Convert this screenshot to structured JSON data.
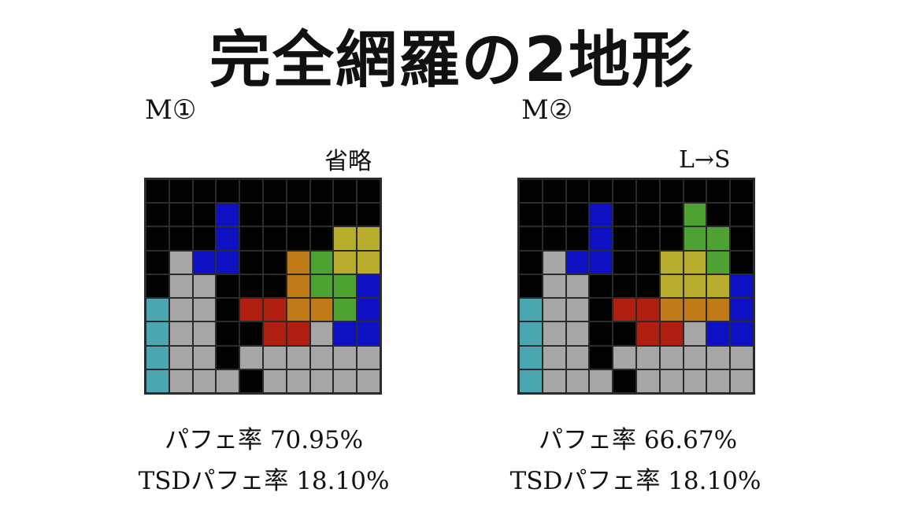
{
  "title": "完全網羅の2地形",
  "colors": {
    "X": "#000000",
    "G": "#a6a6a6",
    "I": "#4aa6b0",
    "B": "#0e10c4",
    "R": "#b01e10",
    "O": "#c07a18",
    "Gr": "#4ea232",
    "Y": "#b8ac2c"
  },
  "panels": [
    {
      "label": "M①",
      "note": "省略",
      "grid": [
        [
          "X",
          "X",
          "X",
          "X",
          "X",
          "X",
          "X",
          "X",
          "X",
          "X"
        ],
        [
          "X",
          "X",
          "X",
          "B",
          "X",
          "X",
          "X",
          "X",
          "X",
          "X"
        ],
        [
          "X",
          "X",
          "X",
          "B",
          "X",
          "X",
          "X",
          "X",
          "Y",
          "Y"
        ],
        [
          "X",
          "G",
          "B",
          "B",
          "X",
          "X",
          "O",
          "Gr",
          "Y",
          "Y"
        ],
        [
          "X",
          "G",
          "G",
          "X",
          "X",
          "X",
          "O",
          "Gr",
          "Gr",
          "B"
        ],
        [
          "I",
          "G",
          "G",
          "X",
          "R",
          "R",
          "O",
          "O",
          "Gr",
          "B"
        ],
        [
          "I",
          "G",
          "G",
          "X",
          "X",
          "R",
          "R",
          "G",
          "B",
          "B"
        ],
        [
          "I",
          "G",
          "G",
          "X",
          "G",
          "G",
          "G",
          "G",
          "G",
          "G"
        ],
        [
          "I",
          "G",
          "G",
          "G",
          "X",
          "G",
          "G",
          "G",
          "G",
          "G"
        ]
      ],
      "stat1": "パフェ率 70.95%",
      "stat2": "TSDパフェ率 18.10%"
    },
    {
      "label": "M②",
      "note": "L→S",
      "grid": [
        [
          "X",
          "X",
          "X",
          "X",
          "X",
          "X",
          "X",
          "X",
          "X",
          "X"
        ],
        [
          "X",
          "X",
          "X",
          "B",
          "X",
          "X",
          "X",
          "Gr",
          "X",
          "X"
        ],
        [
          "X",
          "X",
          "X",
          "B",
          "X",
          "X",
          "X",
          "Gr",
          "Gr",
          "X"
        ],
        [
          "X",
          "G",
          "B",
          "B",
          "X",
          "X",
          "Y",
          "Y",
          "Gr",
          "X"
        ],
        [
          "X",
          "G",
          "G",
          "X",
          "X",
          "X",
          "Y",
          "Y",
          "Y",
          "B"
        ],
        [
          "I",
          "G",
          "G",
          "X",
          "R",
          "R",
          "O",
          "O",
          "O",
          "B"
        ],
        [
          "I",
          "G",
          "G",
          "X",
          "X",
          "R",
          "R",
          "G",
          "B",
          "B"
        ],
        [
          "I",
          "G",
          "G",
          "X",
          "G",
          "G",
          "G",
          "G",
          "G",
          "G"
        ],
        [
          "I",
          "G",
          "G",
          "G",
          "X",
          "G",
          "G",
          "G",
          "G",
          "G"
        ]
      ],
      "stat1": "パフェ率 66.67%",
      "stat2": "TSDパフェ率 18.10%"
    }
  ]
}
